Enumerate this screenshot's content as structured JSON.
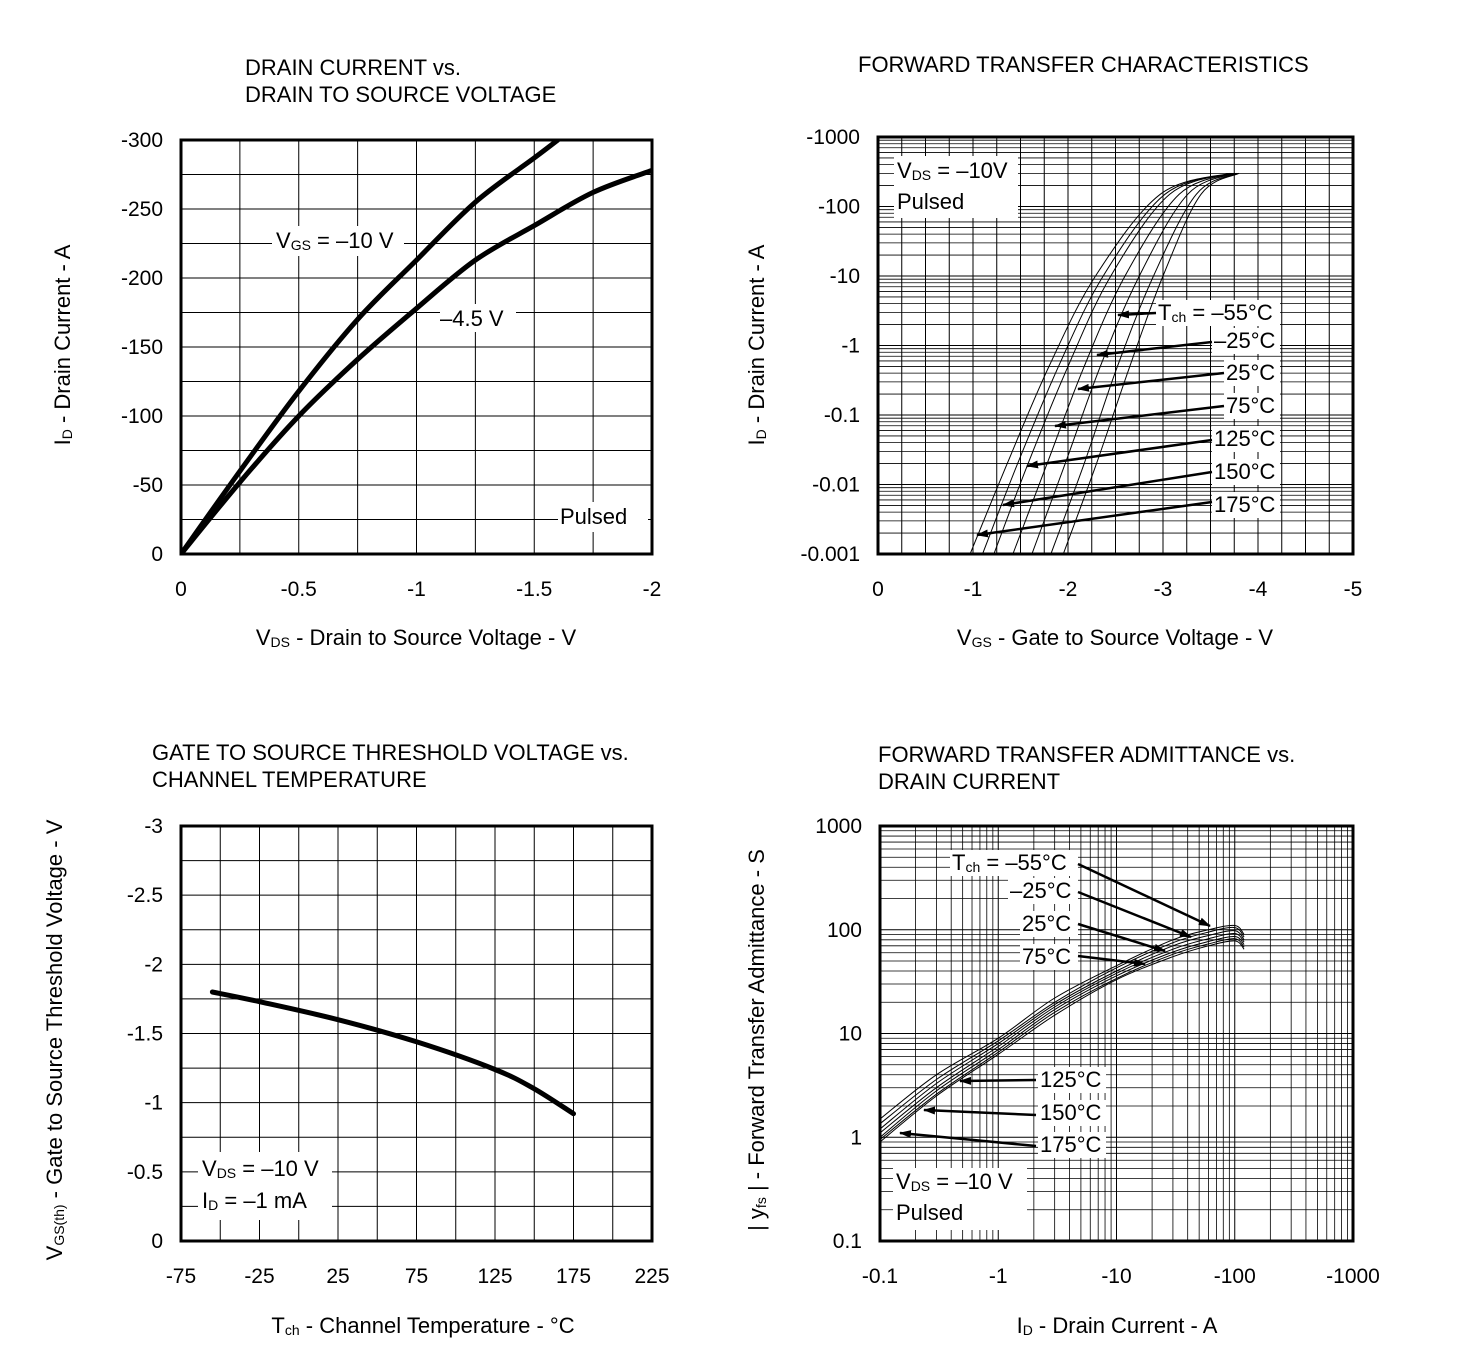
{
  "colors": {
    "line": "#000000",
    "background": "#ffffff"
  },
  "chart_data": [
    {
      "id": "c1",
      "type": "line",
      "title": [
        "DRAIN CURRENT vs.",
        "DRAIN TO SOURCE VOLTAGE"
      ],
      "xlabel": {
        "sym": "V",
        "sub": "DS",
        "text": " - Drain to Source Voltage - V"
      },
      "ylabel": {
        "sym": "I",
        "sub": "D",
        "text": " - Drain Current - A"
      },
      "xlim": [
        0,
        -2
      ],
      "ylim": [
        0,
        -300
      ],
      "xticks": [
        0,
        -0.5,
        -1,
        -1.5,
        -2
      ],
      "xtick_labels": [
        "0",
        "-0.5",
        "-1",
        "-1.5",
        "-2"
      ],
      "yticks": [
        0,
        -50,
        -100,
        -150,
        -200,
        -250,
        -300
      ],
      "ytick_labels": [
        "0",
        "-50",
        "-100",
        "-150",
        "-200",
        "-250",
        "-300"
      ],
      "series": [
        {
          "name": "VGS = -10 V",
          "x": [
            0,
            -0.25,
            -0.5,
            -0.75,
            -1,
            -1.25,
            -1.5,
            -1.6
          ],
          "y": [
            0,
            -60,
            -118,
            -170,
            -213,
            -255,
            -287,
            -300
          ]
        },
        {
          "name": "-4.5 V",
          "x": [
            0,
            -0.25,
            -0.5,
            -0.75,
            -1,
            -1.25,
            -1.5,
            -1.75,
            -2
          ],
          "y": [
            0,
            -52,
            -100,
            -141,
            -178,
            -213,
            -238,
            -262,
            -278
          ]
        }
      ],
      "annotations": [
        {
          "sym": "V",
          "sub": "GS",
          "text": " = –10 V"
        },
        {
          "sym": "",
          "sub": "",
          "text": "–4.5 V"
        },
        {
          "sym": "",
          "sub": "",
          "text": "Pulsed"
        }
      ]
    },
    {
      "id": "c2",
      "type": "line",
      "title": [
        "FORWARD TRANSFER CHARACTERISTICS"
      ],
      "xlabel": {
        "sym": "V",
        "sub": "GS",
        "text": " - Gate to Source Voltage - V"
      },
      "ylabel": {
        "sym": "I",
        "sub": "D",
        "text": " - Drain Current - A"
      },
      "xlim": [
        0,
        -5
      ],
      "ylim": [
        -0.001,
        -1000
      ],
      "yscale": "log",
      "xticks": [
        0,
        -1,
        -2,
        -3,
        -4,
        -5
      ],
      "xtick_labels": [
        "0",
        "-1",
        "-2",
        "-3",
        "-4",
        "-5"
      ],
      "yticks": [
        -0.001,
        -0.01,
        -0.1,
        -1,
        -10,
        -100,
        -1000
      ],
      "ytick_labels": [
        "-0.001",
        "-0.01",
        "-0.1",
        "-1",
        "-10",
        "-100",
        "-1000"
      ],
      "series": [
        {
          "name": "Tch = -55°C",
          "x": [
            -1.95,
            -2.3,
            -2.65,
            -3.0,
            -3.4,
            -3.8
          ],
          "y": [
            -0.001,
            -0.02,
            -0.5,
            -10,
            -150,
            -300
          ]
        },
        {
          "name": "-25°C",
          "x": [
            -1.82,
            -2.17,
            -2.52,
            -2.9,
            -3.35,
            -3.78
          ],
          "y": [
            -0.001,
            -0.02,
            -0.5,
            -10,
            -150,
            -300
          ]
        },
        {
          "name": "25°C",
          "x": [
            -1.62,
            -1.97,
            -2.34,
            -2.75,
            -3.26,
            -3.76
          ],
          "y": [
            -0.001,
            -0.02,
            -0.5,
            -10,
            -150,
            -300
          ]
        },
        {
          "name": "75°C",
          "x": [
            -1.42,
            -1.78,
            -2.17,
            -2.6,
            -3.17,
            -3.74
          ],
          "y": [
            -0.001,
            -0.02,
            -0.5,
            -10,
            -150,
            -300
          ]
        },
        {
          "name": "125°C",
          "x": [
            -1.22,
            -1.58,
            -2.0,
            -2.45,
            -3.07,
            -3.72
          ],
          "y": [
            -0.001,
            -0.02,
            -0.5,
            -10,
            -150,
            -300
          ]
        },
        {
          "name": "150°C",
          "x": [
            -1.1,
            -1.47,
            -1.9,
            -2.37,
            -3.02,
            -3.71
          ],
          "y": [
            -0.001,
            -0.02,
            -0.5,
            -10,
            -150,
            -300
          ]
        },
        {
          "name": "175°C",
          "x": [
            -0.97,
            -1.36,
            -1.8,
            -2.29,
            -2.97,
            -3.7
          ],
          "y": [
            -0.001,
            -0.02,
            -0.5,
            -10,
            -150,
            -300
          ]
        }
      ],
      "annotations": [
        {
          "sym": "V",
          "sub": "DS",
          "text": " = –10V"
        },
        {
          "sym": "",
          "sub": "",
          "text": "Pulsed"
        },
        {
          "sym": "T",
          "sub": "ch",
          "text": " = –55°C"
        },
        {
          "sym": "",
          "sub": "",
          "text": "–25°C"
        },
        {
          "sym": "",
          "sub": "",
          "text": "25°C"
        },
        {
          "sym": "",
          "sub": "",
          "text": "75°C"
        },
        {
          "sym": "",
          "sub": "",
          "text": "125°C"
        },
        {
          "sym": "",
          "sub": "",
          "text": "150°C"
        },
        {
          "sym": "",
          "sub": "",
          "text": "175°C"
        }
      ]
    },
    {
      "id": "c3",
      "type": "line",
      "title": [
        "GATE TO SOURCE THRESHOLD VOLTAGE vs.",
        "CHANNEL TEMPERATURE"
      ],
      "xlabel": {
        "sym": "T",
        "sub": "ch",
        "text": " - Channel Temperature - °C"
      },
      "ylabel": {
        "sym": "V",
        "sub": "GS(th)",
        "text": " - Gate to Source Threshold Voltage - V"
      },
      "xlim": [
        -75,
        225
      ],
      "ylim": [
        0,
        -3
      ],
      "xticks": [
        -75,
        -25,
        25,
        75,
        125,
        175,
        225
      ],
      "xtick_labels": [
        "-75",
        "-25",
        "25",
        "75",
        "125",
        "175",
        "225"
      ],
      "yticks": [
        0,
        -0.5,
        -1,
        -1.5,
        -2,
        -2.5,
        -3
      ],
      "ytick_labels": [
        "0",
        "-0.5",
        "-1",
        "-1.5",
        "-2",
        "-2.5",
        "-3"
      ],
      "series": [
        {
          "name": "VGS(th)",
          "x": [
            -55,
            -25,
            25,
            75,
            125,
            150,
            175
          ],
          "y": [
            -1.8,
            -1.73,
            -1.6,
            -1.44,
            -1.24,
            -1.1,
            -0.92
          ]
        }
      ],
      "annotations": [
        {
          "sym": "V",
          "sub": "DS",
          "text": " = –10 V"
        },
        {
          "sym": "I",
          "sub": "D",
          "text": " = –1 mA"
        }
      ]
    },
    {
      "id": "c4",
      "type": "line",
      "title": [
        "FORWARD TRANSFER ADMITTANCE vs.",
        "DRAIN CURRENT"
      ],
      "xlabel": {
        "sym": "I",
        "sub": "D",
        "text": " - Drain Current - A"
      },
      "ylabel": {
        "sym": "| y",
        "sub": "fs",
        "text": " | - Forward Transfer Admittance - S"
      },
      "xlim": [
        -0.1,
        -1000
      ],
      "ylim": [
        0.1,
        1000
      ],
      "xscale": "log",
      "yscale": "log",
      "xticks": [
        -0.1,
        -1,
        -10,
        -100,
        -1000
      ],
      "xtick_labels": [
        "-0.1",
        "-1",
        "-10",
        "-100",
        "-1000"
      ],
      "yticks": [
        0.1,
        1,
        10,
        100,
        1000
      ],
      "ytick_labels": [
        "0.1",
        "1",
        "10",
        "100",
        "1000"
      ],
      "series": [
        {
          "name": "Tch = -55°C",
          "x": [
            -0.1,
            -0.3,
            -1,
            -3,
            -10,
            -30,
            -60,
            -100,
            -120
          ],
          "y": [
            1.5,
            4,
            9,
            22,
            45,
            80,
            100,
            110,
            90
          ]
        },
        {
          "name": "-25°C",
          "x": [
            -0.1,
            -0.3,
            -1,
            -3,
            -10,
            -30,
            -60,
            -100,
            -120
          ],
          "y": [
            1.35,
            3.6,
            8.5,
            20,
            43,
            75,
            95,
            105,
            85
          ]
        },
        {
          "name": "25°C",
          "x": [
            -0.1,
            -0.3,
            -1,
            -3,
            -10,
            -30,
            -60,
            -100,
            -120
          ],
          "y": [
            1.2,
            3.3,
            8,
            19,
            40,
            70,
            88,
            98,
            80
          ]
        },
        {
          "name": "75°C",
          "x": [
            -0.1,
            -0.3,
            -1,
            -3,
            -10,
            -30,
            -60,
            -100,
            -120
          ],
          "y": [
            1.1,
            3.0,
            7.5,
            18,
            38,
            65,
            82,
            92,
            76
          ]
        },
        {
          "name": "125°C",
          "x": [
            -0.1,
            -0.3,
            -1,
            -3,
            -10,
            -30,
            -60,
            -100,
            -120
          ],
          "y": [
            1.0,
            2.8,
            7,
            17,
            36,
            61,
            77,
            86,
            72
          ]
        },
        {
          "name": "150°C",
          "x": [
            -0.1,
            -0.3,
            -1,
            -3,
            -10,
            -30,
            -60,
            -100,
            -120
          ],
          "y": [
            0.95,
            2.6,
            6.6,
            16,
            34,
            58,
            73,
            82,
            68
          ]
        },
        {
          "name": "175°C",
          "x": [
            -0.1,
            -0.3,
            -1,
            -3,
            -10,
            -30,
            -60,
            -100,
            -120
          ],
          "y": [
            0.9,
            2.5,
            6.3,
            15,
            33,
            55,
            70,
            78,
            65
          ]
        }
      ],
      "annotations": [
        {
          "sym": "T",
          "sub": "ch",
          "text": " = –55°C"
        },
        {
          "sym": "",
          "sub": "",
          "text": "–25°C"
        },
        {
          "sym": "",
          "sub": "",
          "text": "25°C"
        },
        {
          "sym": "",
          "sub": "",
          "text": "75°C"
        },
        {
          "sym": "",
          "sub": "",
          "text": "125°C"
        },
        {
          "sym": "",
          "sub": "",
          "text": "150°C"
        },
        {
          "sym": "",
          "sub": "",
          "text": "175°C"
        },
        {
          "sym": "V",
          "sub": "DS",
          "text": " = –10 V"
        },
        {
          "sym": "",
          "sub": "",
          "text": "Pulsed"
        }
      ]
    }
  ]
}
